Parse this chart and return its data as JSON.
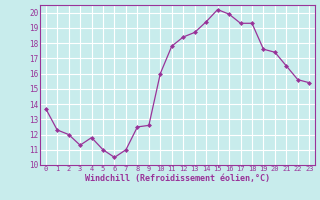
{
  "x": [
    0,
    1,
    2,
    3,
    4,
    5,
    6,
    7,
    8,
    9,
    10,
    11,
    12,
    13,
    14,
    15,
    16,
    17,
    18,
    19,
    20,
    21,
    22,
    23
  ],
  "y": [
    13.7,
    12.3,
    12.0,
    11.3,
    11.8,
    11.0,
    10.5,
    11.0,
    12.5,
    12.6,
    16.0,
    17.8,
    18.4,
    18.7,
    19.4,
    20.2,
    19.9,
    19.3,
    19.3,
    17.6,
    17.4,
    16.5,
    15.6,
    15.4
  ],
  "line_color": "#993399",
  "marker": "D",
  "marker_size": 2.0,
  "bg_color": "#c8ecec",
  "grid_color": "#ffffff",
  "xlabel": "Windchill (Refroidissement éolien,°C)",
  "xlabel_color": "#993399",
  "tick_color": "#993399",
  "xlim": [
    -0.5,
    23.5
  ],
  "ylim": [
    10,
    20.5
  ],
  "yticks": [
    10,
    11,
    12,
    13,
    14,
    15,
    16,
    17,
    18,
    19,
    20
  ],
  "xticks": [
    0,
    1,
    2,
    3,
    4,
    5,
    6,
    7,
    8,
    9,
    10,
    11,
    12,
    13,
    14,
    15,
    16,
    17,
    18,
    19,
    20,
    21,
    22,
    23
  ]
}
